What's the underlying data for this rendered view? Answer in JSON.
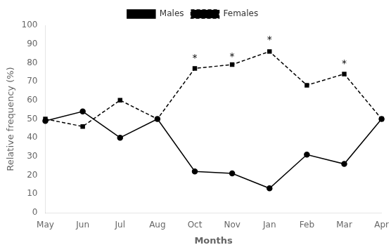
{
  "chart_data": {
    "type": "line",
    "x_label": "Months",
    "y_label": "Relative frequency (%)",
    "categories": [
      "May",
      "Jun",
      "Jul",
      "Aug",
      "Oct",
      "Nov",
      "Jan",
      "Feb",
      "Mar",
      "Apr"
    ],
    "series": [
      {
        "name": "Males",
        "color": "black",
        "marker": "circle",
        "line_style": "solid",
        "values": [
          49,
          54,
          40,
          50,
          22,
          21,
          13,
          31,
          26,
          50
        ]
      },
      {
        "name": "Females",
        "color": "black",
        "marker": "square",
        "line_style": "dashed",
        "values": [
          50,
          46,
          60,
          50,
          77,
          79,
          86,
          68,
          74,
          50
        ]
      }
    ],
    "annotations": [
      {
        "text": "*",
        "x": "Oct",
        "y": 81
      },
      {
        "text": "*",
        "x": "Nov",
        "y": 82
      },
      {
        "text": "*",
        "x": "Jan",
        "y": 91
      },
      {
        "text": "*",
        "x": "Mar",
        "y": 78
      }
    ],
    "ylim": [
      0,
      100
    ],
    "yticks": [
      0,
      10,
      20,
      30,
      40,
      50,
      60,
      70,
      80,
      90,
      100
    ],
    "grid": false,
    "legend": "top"
  }
}
